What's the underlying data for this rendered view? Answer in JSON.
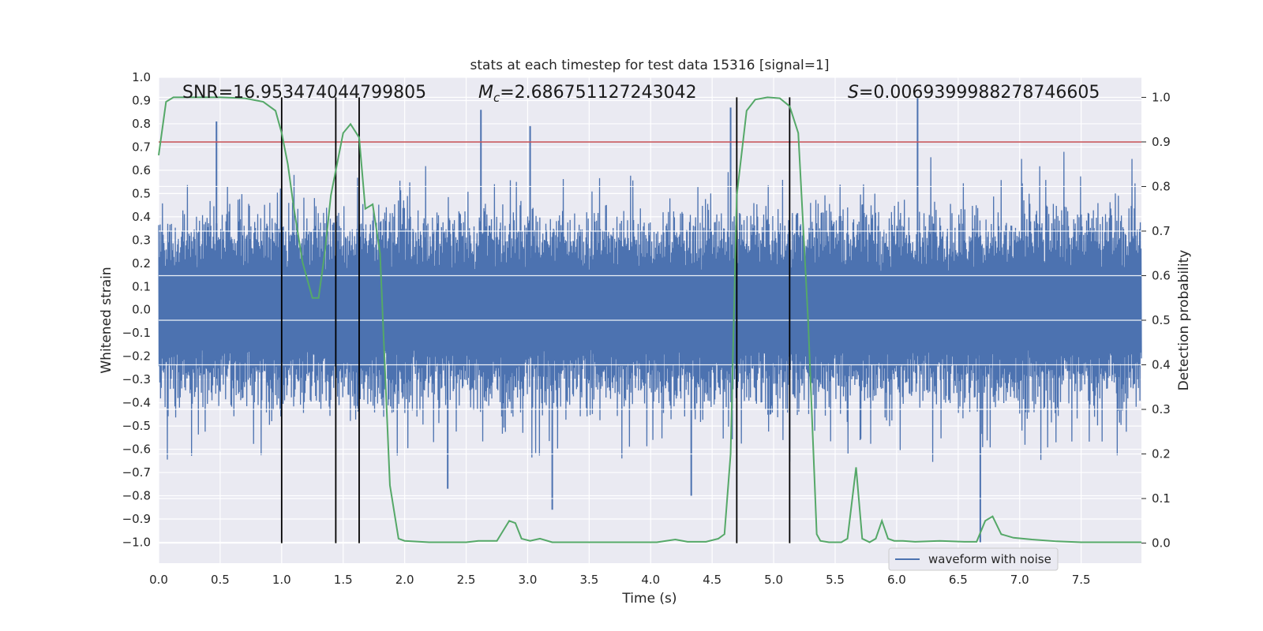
{
  "chart_data": {
    "type": "line",
    "title": "stats at each timestep for test data 15316 [signal=1]",
    "xlabel": "Time (s)",
    "ylabel_left": "Whitened strain",
    "ylabel_right": "Detection probability",
    "xlim": [
      0.0,
      7.99
    ],
    "ylim_left": [
      -1.09,
      1.0
    ],
    "ylim_right": [
      -0.045,
      1.045
    ],
    "xticks": [
      "0.0",
      "0.5",
      "1.0",
      "1.5",
      "2.0",
      "2.5",
      "3.0",
      "3.5",
      "4.0",
      "4.5",
      "5.0",
      "5.5",
      "6.0",
      "6.5",
      "7.0",
      "7.5"
    ],
    "yticks_left": [
      "1.0",
      "0.9",
      "0.8",
      "0.7",
      "0.6",
      "0.5",
      "0.4",
      "0.3",
      "0.2",
      "0.1",
      "0.0",
      "-0.1",
      "-0.2",
      "-0.3",
      "-0.4",
      "-0.5",
      "-0.6",
      "-0.7",
      "-0.8",
      "-0.9",
      "-1.0"
    ],
    "yticks_right": [
      "1.0",
      "0.9",
      "0.8",
      "0.7",
      "0.6",
      "0.5",
      "0.4",
      "0.3",
      "0.2",
      "0.1",
      "0.0"
    ],
    "annotations": {
      "snr": "SNR=16.953474044799805",
      "mc_symbol": "M",
      "mc_sub": "c",
      "mc_value": "=2.686751127243042",
      "s_symbol": "S",
      "s_value": "=0.0069399988278746605"
    },
    "threshold": 0.9,
    "vlines": [
      1.0,
      1.44,
      1.63,
      4.7,
      5.13
    ],
    "waveform_with_noise": {
      "name": "waveform with noise",
      "duration": 7.99,
      "typical_amplitude": 0.5,
      "max_peaks": [
        {
          "t": 0.47,
          "v": 0.81
        },
        {
          "t": 2.62,
          "v": 0.86
        },
        {
          "t": 3.02,
          "v": 0.79
        },
        {
          "t": 4.65,
          "v": 0.87
        },
        {
          "t": 6.17,
          "v": 0.91
        }
      ],
      "min_peaks": [
        {
          "t": 2.35,
          "v": -0.77
        },
        {
          "t": 3.2,
          "v": -0.86
        },
        {
          "t": 4.33,
          "v": -0.8
        },
        {
          "t": 6.68,
          "v": -1.0
        }
      ]
    },
    "detection_probability": {
      "t": [
        0.0,
        0.06,
        0.12,
        0.3,
        0.5,
        0.7,
        0.85,
        0.95,
        1.0,
        1.05,
        1.1,
        1.17,
        1.25,
        1.3,
        1.35,
        1.4,
        1.45,
        1.5,
        1.56,
        1.63,
        1.68,
        1.74,
        1.8,
        1.88,
        1.95,
        2.0,
        2.2,
        2.5,
        2.6,
        2.75,
        2.85,
        2.9,
        2.95,
        3.02,
        3.1,
        3.2,
        3.3,
        3.5,
        3.8,
        4.05,
        4.2,
        4.3,
        4.45,
        4.55,
        4.6,
        4.65,
        4.7,
        4.78,
        4.85,
        4.95,
        5.05,
        5.13,
        5.2,
        5.28,
        5.35,
        5.38,
        5.45,
        5.55,
        5.6,
        5.67,
        5.72,
        5.78,
        5.83,
        5.88,
        5.93,
        5.98,
        6.05,
        6.15,
        6.35,
        6.55,
        6.65,
        6.72,
        6.78,
        6.85,
        6.95,
        7.1,
        7.3,
        7.5,
        7.7,
        7.99
      ],
      "values": [
        0.87,
        0.99,
        1.0,
        1.0,
        1.0,
        0.998,
        0.99,
        0.97,
        0.92,
        0.85,
        0.75,
        0.63,
        0.55,
        0.55,
        0.65,
        0.78,
        0.85,
        0.92,
        0.94,
        0.91,
        0.75,
        0.76,
        0.65,
        0.13,
        0.01,
        0.005,
        0.002,
        0.002,
        0.005,
        0.005,
        0.05,
        0.045,
        0.01,
        0.005,
        0.01,
        0.002,
        0.002,
        0.002,
        0.002,
        0.002,
        0.008,
        0.003,
        0.003,
        0.01,
        0.02,
        0.2,
        0.78,
        0.97,
        0.995,
        1.0,
        0.998,
        0.98,
        0.92,
        0.5,
        0.02,
        0.005,
        0.002,
        0.002,
        0.01,
        0.17,
        0.01,
        0.002,
        0.01,
        0.05,
        0.01,
        0.005,
        0.005,
        0.003,
        0.005,
        0.003,
        0.003,
        0.05,
        0.06,
        0.02,
        0.012,
        0.008,
        0.004,
        0.002,
        0.002,
        0.002
      ]
    },
    "legend": {
      "label": "waveform with noise",
      "position": "lower right"
    },
    "colors": {
      "background": "#eaeaf2",
      "grid": "#ffffff",
      "waveform": "#4c72b0",
      "probability": "#55a868",
      "threshold": "#c44e52",
      "vline": "#000000"
    }
  }
}
